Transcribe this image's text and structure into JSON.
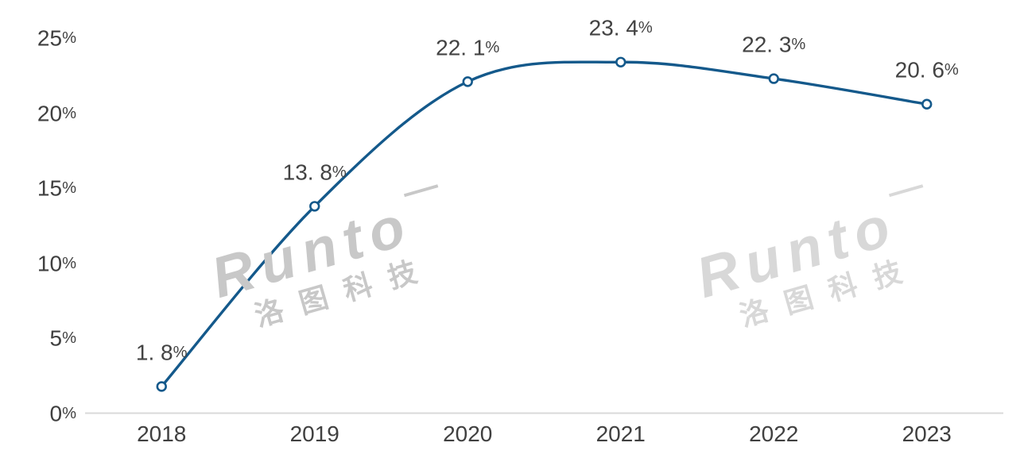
{
  "chart_data": {
    "type": "line",
    "title": "",
    "xlabel": "",
    "ylabel": "",
    "categories": [
      "2018",
      "2019",
      "2020",
      "2021",
      "2022",
      "2023"
    ],
    "values": [
      1.8,
      13.8,
      22.1,
      23.4,
      22.3,
      20.6
    ],
    "point_labels": [
      "1. 8%",
      "13. 8%",
      "22. 1%",
      "23. 4%",
      "22. 3%",
      "20. 6%"
    ],
    "yticks": [
      "0%",
      "5%",
      "10%",
      "15%",
      "20%",
      "25%"
    ],
    "ytick_values": [
      0,
      5,
      10,
      15,
      20,
      25
    ],
    "ylim": [
      0,
      25
    ],
    "grid": false,
    "legend": null,
    "smooth": true,
    "line_color": "#14598B",
    "marker": "open-circle",
    "marker_fill": "#FFFFFF",
    "axis_line_color": "#D9D9D9",
    "text_color": "#404040"
  },
  "watermarks": [
    {
      "latin": "Runto",
      "cjk": "洛图科技",
      "color": "#C8C8C8"
    },
    {
      "latin": "Runto",
      "cjk": "洛图科技",
      "color": "#D8D8D8"
    }
  ]
}
